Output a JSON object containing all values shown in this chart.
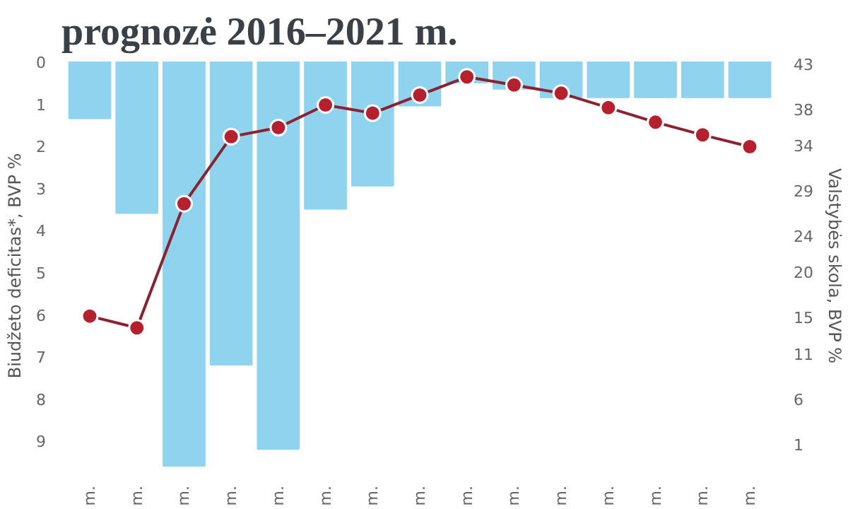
{
  "chart_data": {
    "type": "bar",
    "title": "prognozė 2016–2021 m.",
    "categories": [
      "m.",
      "m.",
      "m.",
      "m.",
      "m.",
      "m.",
      "m.",
      "m.",
      "m.",
      "m.",
      "m.",
      "m.",
      "m.",
      "m.",
      "m."
    ],
    "series": [
      {
        "color": "#8fd3ef",
        "values": [
          1.35,
          3.6,
          9.6,
          7.2,
          9.2,
          3.5,
          2.95,
          1.05,
          0.5,
          0.65,
          0.85,
          0.85,
          0.85,
          0.85,
          0.85
        ]
      },
      {
        "type": "line",
        "axis": "y2",
        "color": "#8b2232",
        "marker": "circle",
        "line_style": "solid",
        "values": [
          15.1,
          13.8,
          27.5,
          34.9,
          35.9,
          38.4,
          37.5,
          39.5,
          41.5,
          40.6,
          39.7,
          38.1,
          36.5,
          35.1,
          33.8
        ]
      }
    ],
    "ylabel": "Biudžeto deficitas*, BVP %",
    "y2label": "Valstybės skola, BVP %",
    "ylim": [
      9.7,
      0
    ],
    "yticks": [
      0,
      1,
      2,
      3,
      4,
      5,
      6,
      7,
      8,
      9
    ],
    "y2lim": [
      -1.9,
      43.2
    ],
    "y2ticks": [
      1,
      6,
      11,
      15,
      20,
      24,
      29,
      34,
      38,
      43
    ],
    "grid": false
  }
}
